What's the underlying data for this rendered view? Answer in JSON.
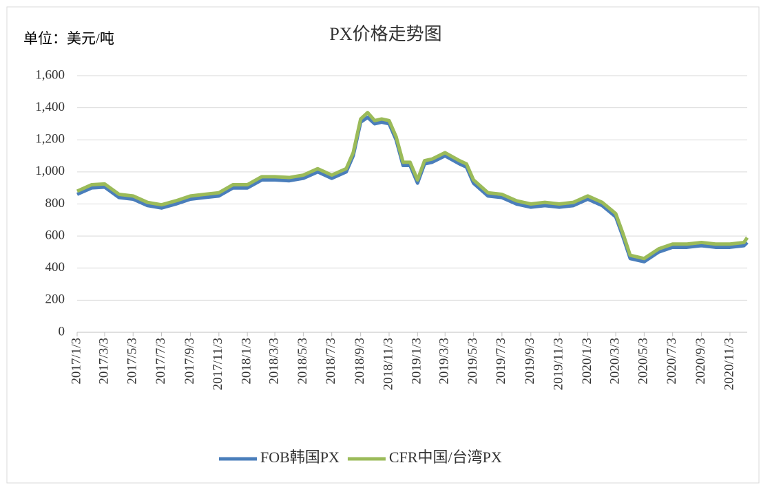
{
  "chart_data": {
    "type": "line",
    "title": "PX价格走势图",
    "y_unit_label": "单位：美元/吨",
    "x": [
      "2017/1/3",
      "2017/2/3",
      "2017/3/3",
      "2017/4/3",
      "2017/5/3",
      "2017/6/3",
      "2017/7/3",
      "2017/8/3",
      "2017/9/3",
      "2017/10/3",
      "2017/11/3",
      "2017/12/3",
      "2018/1/3",
      "2018/2/3",
      "2018/3/3",
      "2018/4/3",
      "2018/5/3",
      "2018/6/3",
      "2018/7/3",
      "2018/8/3",
      "2018/8/18",
      "2018/9/3",
      "2018/9/18",
      "2018/10/3",
      "2018/10/18",
      "2018/11/3",
      "2018/11/18",
      "2018/12/3",
      "2018/12/18",
      "2019/1/3",
      "2019/1/18",
      "2019/2/3",
      "2019/3/3",
      "2019/4/3",
      "2019/4/18",
      "2019/5/3",
      "2019/6/3",
      "2019/7/3",
      "2019/8/3",
      "2019/9/3",
      "2019/10/3",
      "2019/11/3",
      "2019/12/3",
      "2020/1/3",
      "2020/2/3",
      "2020/3/3",
      "2020/3/18",
      "2020/4/3",
      "2020/5/3",
      "2020/6/3",
      "2020/7/3",
      "2020/8/3",
      "2020/9/3",
      "2020/10/3",
      "2020/11/3",
      "2020/12/3",
      "2020/12/10"
    ],
    "series": [
      {
        "name": "FOB韩国PX",
        "color": "#4a7ebb",
        "values": [
          860,
          900,
          905,
          840,
          830,
          790,
          775,
          800,
          830,
          840,
          850,
          900,
          900,
          950,
          950,
          945,
          960,
          1000,
          960,
          1000,
          1100,
          1310,
          1340,
          1300,
          1310,
          1300,
          1200,
          1040,
          1040,
          930,
          1050,
          1060,
          1100,
          1050,
          1030,
          930,
          850,
          840,
          800,
          780,
          790,
          780,
          790,
          830,
          790,
          720,
          600,
          460,
          440,
          500,
          530,
          530,
          540,
          530,
          530,
          540,
          560
        ]
      },
      {
        "name": "CFR中国/台湾PX",
        "color": "#9bbb59",
        "values": [
          880,
          920,
          925,
          860,
          850,
          810,
          795,
          820,
          850,
          860,
          870,
          920,
          920,
          970,
          970,
          965,
          980,
          1020,
          980,
          1020,
          1120,
          1330,
          1370,
          1320,
          1330,
          1320,
          1220,
          1060,
          1060,
          950,
          1070,
          1080,
          1120,
          1070,
          1050,
          950,
          870,
          860,
          820,
          800,
          810,
          800,
          810,
          850,
          810,
          740,
          620,
          480,
          460,
          520,
          550,
          550,
          560,
          550,
          550,
          560,
          590
        ]
      }
    ],
    "xlim": [
      "2017/1/3",
      "2020/12/10"
    ],
    "xticks": [
      "2017/1/3",
      "2017/3/3",
      "2017/5/3",
      "2017/7/3",
      "2017/9/3",
      "2017/11/3",
      "2018/1/3",
      "2018/3/3",
      "2018/5/3",
      "2018/7/3",
      "2018/9/3",
      "2018/11/3",
      "2019/1/3",
      "2019/3/3",
      "2019/5/3",
      "2019/7/3",
      "2019/9/3",
      "2019/11/3",
      "2020/1/3",
      "2020/3/3",
      "2020/5/3",
      "2020/7/3",
      "2020/9/3",
      "2020/11/3"
    ],
    "ylim": [
      0,
      1600
    ],
    "yticks": [
      0,
      200,
      400,
      600,
      800,
      {
        "value": 1000,
        "label": "1,000"
      },
      {
        "value": 1200,
        "label": "1,200"
      },
      {
        "value": 1400,
        "label": "1,400"
      },
      {
        "value": 1600,
        "label": "1,600"
      }
    ],
    "grid": true,
    "legend": "bottom"
  }
}
